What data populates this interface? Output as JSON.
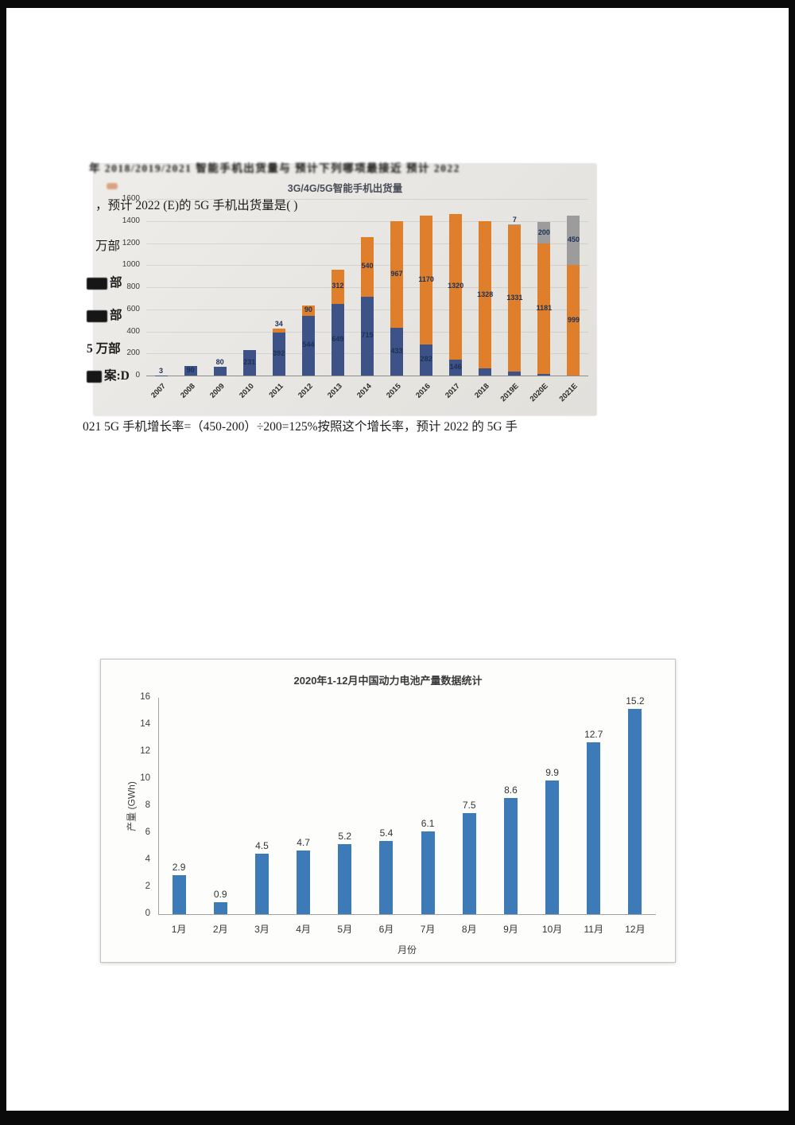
{
  "document": {
    "blur_line": "年 2018/2019/2021 智能手机出货量与 预计下列哪项最接近 预计 2022",
    "question_line": "，预计 2022 (E)的 5G 手机出货量是( )",
    "option_a_fragment": "万部",
    "option_b_fragment": "部",
    "option_c_fragment": "部",
    "option_d_fragment": "5 万部",
    "answer_fragment": "案:D",
    "explanation_line": "021 5G 手机增长率=（450-200）÷200=125%按照这个增长率，预计 2022 的 5G 手"
  },
  "chart_data": [
    {
      "type": "bar",
      "stacked": true,
      "title": "3G/4G/5G智能手机出货量",
      "categories": [
        "2007",
        "2008",
        "2009",
        "2010",
        "2011",
        "2012",
        "2013",
        "2014",
        "2015",
        "2016",
        "2017",
        "2018",
        "2019E",
        "2020E",
        "2021E"
      ],
      "series": [
        {
          "name": "3G",
          "color": "#3d5286",
          "values": [
            3,
            90,
            80,
            231,
            392,
            544,
            649,
            715,
            433,
            282,
            146,
            67,
            33,
            12,
            0
          ]
        },
        {
          "name": "4G",
          "color": "#df7f2b",
          "values": [
            0,
            0,
            0,
            0,
            34,
            90,
            312,
            540,
            967,
            1170,
            1320,
            1328,
            1331,
            1181,
            999
          ]
        },
        {
          "name": "5G",
          "color": "#9c9c9c",
          "values": [
            0,
            0,
            0,
            0,
            0,
            0,
            0,
            0,
            0,
            0,
            0,
            0,
            7,
            200,
            450
          ]
        }
      ],
      "ylim": [
        0,
        1600
      ],
      "yticks": [
        0,
        200,
        400,
        600,
        800,
        1000,
        1200,
        1400,
        1600
      ],
      "legend_position": "none",
      "grid": true
    },
    {
      "type": "bar",
      "title": "2020年1-12月中国动力电池产量数据统计",
      "categories": [
        "1月",
        "2月",
        "3月",
        "4月",
        "5月",
        "6月",
        "7月",
        "8月",
        "9月",
        "10月",
        "11月",
        "12月"
      ],
      "values": [
        2.9,
        0.9,
        4.5,
        4.7,
        5.2,
        5.4,
        6.1,
        7.5,
        8.6,
        9.9,
        12.7,
        15.2
      ],
      "bar_color": "#3d7ab8",
      "xlabel": "月份",
      "ylabel": "产量 (GWh)",
      "ylim": [
        0,
        16
      ],
      "yticks": [
        0,
        2,
        4,
        6,
        8,
        10,
        12,
        14,
        16
      ],
      "grid": false
    }
  ]
}
